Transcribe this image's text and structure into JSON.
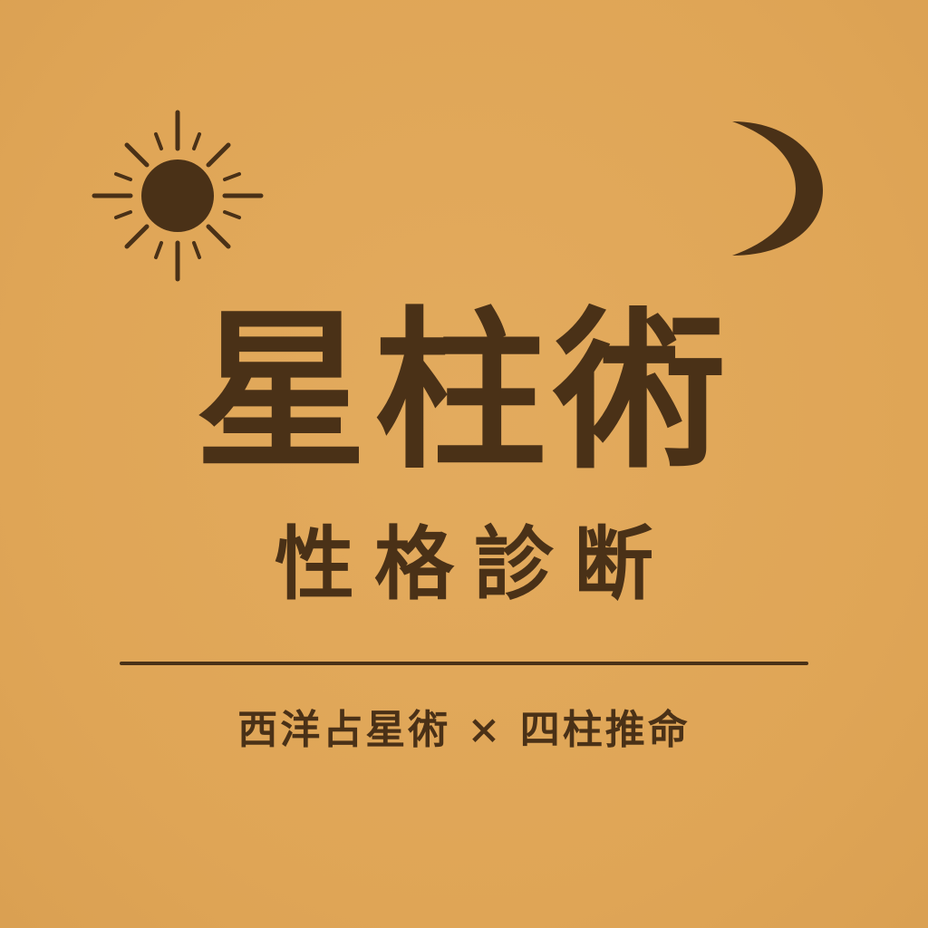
{
  "title": "星柱術",
  "subtitle": "性格診断",
  "tagline": "西洋占星術 × 四柱推命",
  "icons": {
    "left": "sun-icon",
    "right": "crescent-moon-icon"
  },
  "colors": {
    "background": "#E0A75A",
    "ink": "#4A3117"
  }
}
